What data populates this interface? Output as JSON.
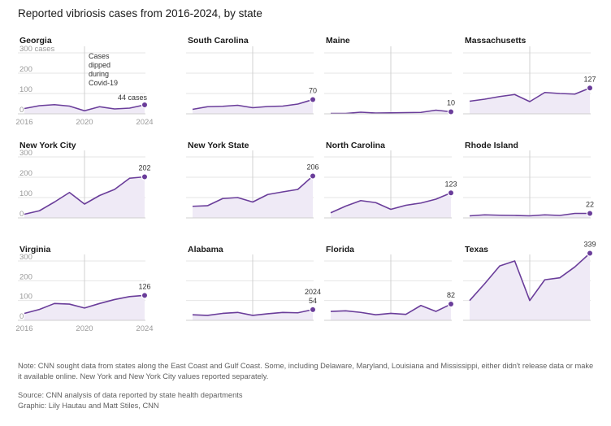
{
  "title": "Reported vibriosis cases from 2016-2024, by state",
  "colors": {
    "line": "#6a3d9a",
    "area": "#efeaf6",
    "grid": "#e4e4e4",
    "axis": "#cfcfcf",
    "annotation_line": "#d0d0d0"
  },
  "note": "Note: CNN sought data from states along the East Coast and Gulf Coast. Some, including Delaware, Maryland, Louisiana and Mississippi, either didn't release data or make it available online. New York and New York City values reported separately.",
  "source": "Source: CNN analysis of data reported by state health departments",
  "graphic": "Graphic: Lily Hautau and Matt Stiles, CNN",
  "annotation": "Cases dipped during Covid-19",
  "chart_data": [
    {
      "type": "area",
      "title": "Georgia",
      "x": [
        2016,
        2017,
        2018,
        2019,
        2020,
        2021,
        2022,
        2023,
        2024
      ],
      "values": [
        26,
        40,
        45,
        38,
        15,
        35,
        24,
        28,
        44
      ],
      "end_label": "44 cases",
      "ylim": [
        0,
        300
      ],
      "yticks": [
        "300 cases",
        "200",
        "100",
        "0"
      ],
      "xticks": [
        "2016",
        "2020",
        "2024"
      ]
    },
    {
      "type": "area",
      "title": "South Carolina",
      "x": [
        2016,
        2017,
        2018,
        2019,
        2020,
        2021,
        2022,
        2023,
        2024
      ],
      "values": [
        22,
        35,
        37,
        42,
        30,
        36,
        38,
        48,
        70
      ],
      "end_label": "70",
      "ylim": [
        0,
        300
      ]
    },
    {
      "type": "area",
      "title": "Maine",
      "x": [
        2016,
        2017,
        2018,
        2019,
        2020,
        2021,
        2022,
        2023,
        2024
      ],
      "values": [
        2,
        2,
        8,
        4,
        5,
        6,
        7,
        18,
        10
      ],
      "end_label": "10",
      "ylim": [
        0,
        300
      ]
    },
    {
      "type": "area",
      "title": "Massachusetts",
      "x": [
        2016,
        2017,
        2018,
        2019,
        2020,
        2021,
        2022,
        2023,
        2024
      ],
      "values": [
        62,
        72,
        85,
        95,
        60,
        105,
        100,
        97,
        127
      ],
      "end_label": "127",
      "ylim": [
        0,
        300
      ]
    },
    {
      "type": "area",
      "title": "New York City",
      "x": [
        2016,
        2017,
        2018,
        2019,
        2020,
        2021,
        2022,
        2023,
        2024
      ],
      "values": [
        18,
        35,
        78,
        125,
        68,
        110,
        140,
        195,
        202
      ],
      "end_label": "202",
      "ylim": [
        0,
        300
      ],
      "yticks": [
        "300",
        "200",
        "100",
        "0"
      ]
    },
    {
      "type": "area",
      "title": "New York State",
      "x": [
        2016,
        2017,
        2018,
        2019,
        2020,
        2021,
        2022,
        2023,
        2024
      ],
      "values": [
        57,
        60,
        95,
        100,
        78,
        115,
        128,
        140,
        206
      ],
      "end_label": "206",
      "ylim": [
        0,
        300
      ]
    },
    {
      "type": "area",
      "title": "North Carolina",
      "x": [
        2016,
        2017,
        2018,
        2019,
        2020,
        2021,
        2022,
        2023,
        2024
      ],
      "values": [
        25,
        58,
        85,
        75,
        42,
        62,
        73,
        92,
        123
      ],
      "end_label": "123",
      "ylim": [
        0,
        300
      ]
    },
    {
      "type": "area",
      "title": "Rhode Island",
      "x": [
        2016,
        2017,
        2018,
        2019,
        2020,
        2021,
        2022,
        2023,
        2024
      ],
      "values": [
        10,
        15,
        13,
        12,
        10,
        15,
        12,
        22,
        22
      ],
      "end_label": "22",
      "ylim": [
        0,
        300
      ]
    },
    {
      "type": "area",
      "title": "Virginia",
      "x": [
        2016,
        2017,
        2018,
        2019,
        2020,
        2021,
        2022,
        2023,
        2024
      ],
      "values": [
        35,
        55,
        85,
        82,
        62,
        85,
        105,
        120,
        126
      ],
      "end_label": "126",
      "ylim": [
        0,
        300
      ],
      "yticks": [
        "300",
        "200",
        "100",
        "0"
      ],
      "xticks": [
        "2016",
        "2020",
        "2024"
      ]
    },
    {
      "type": "area",
      "title": "Alabama",
      "x": [
        2016,
        2017,
        2018,
        2019,
        2020,
        2021,
        2022,
        2023,
        2024
      ],
      "values": [
        28,
        25,
        35,
        40,
        25,
        33,
        40,
        38,
        54
      ],
      "end_label": "54",
      "end_label_extra": "2024",
      "ylim": [
        0,
        300
      ]
    },
    {
      "type": "area",
      "title": "Florida",
      "x": [
        2016,
        2017,
        2018,
        2019,
        2020,
        2021,
        2022,
        2023,
        2024
      ],
      "values": [
        45,
        48,
        40,
        28,
        35,
        30,
        75,
        45,
        82
      ],
      "end_label": "82",
      "ylim": [
        0,
        300
      ]
    },
    {
      "type": "area",
      "title": "Texas",
      "x": [
        2016,
        2017,
        2018,
        2019,
        2020,
        2021,
        2022,
        2023,
        2024
      ],
      "values": [
        100,
        185,
        275,
        300,
        100,
        205,
        215,
        270,
        339
      ],
      "end_label": "339",
      "ylim": [
        0,
        300
      ]
    }
  ]
}
